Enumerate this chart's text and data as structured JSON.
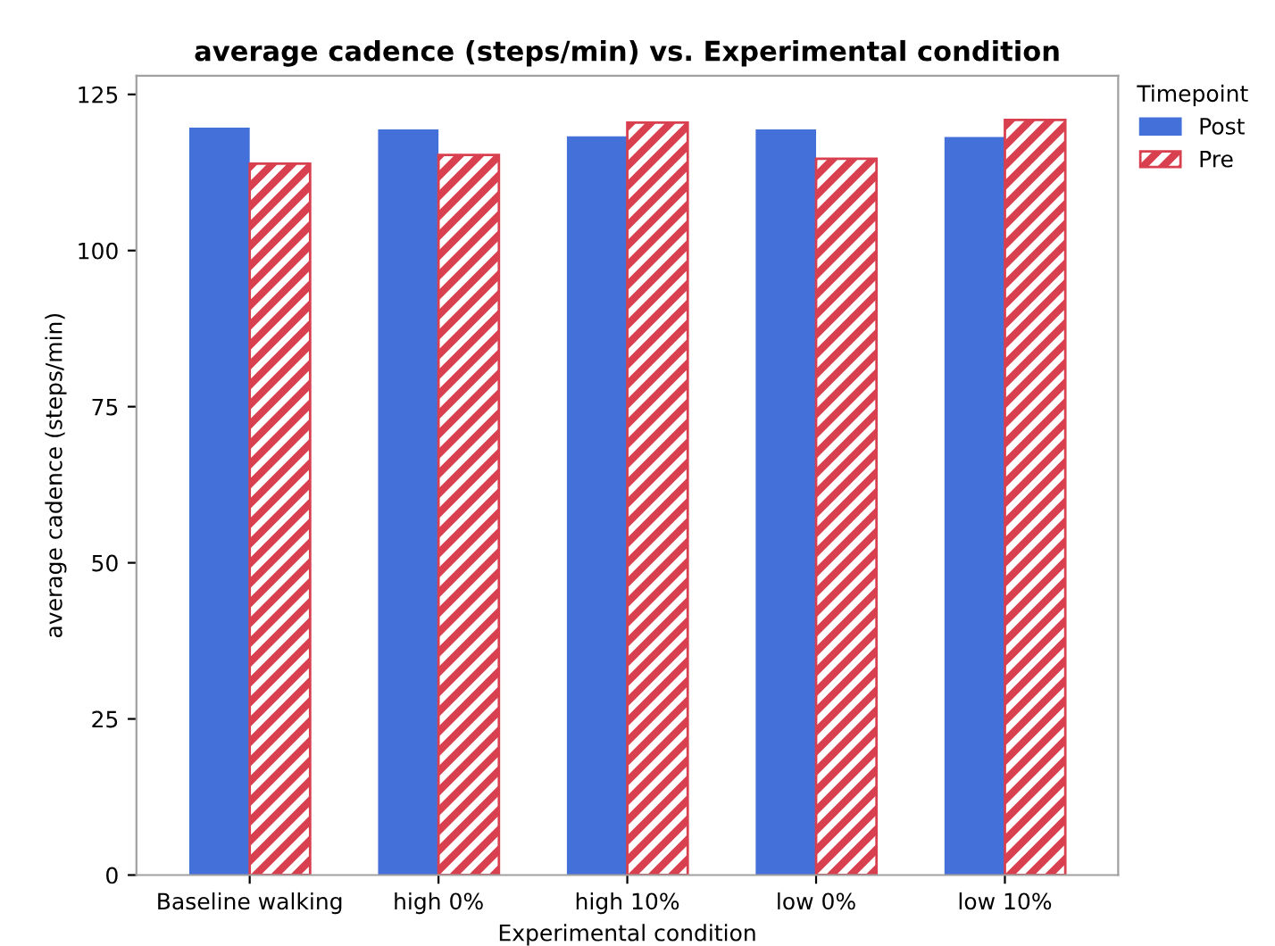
{
  "chart_data": {
    "type": "bar",
    "title": "average cadence (steps/min) vs. Experimental condition",
    "xlabel": "Experimental condition",
    "ylabel": "average cadence (steps/min)",
    "legend_title": "Timepoint",
    "categories": [
      "Baseline walking",
      "high 0%",
      "high 10%",
      "low 0%",
      "low 10%"
    ],
    "series": [
      {
        "name": "Post",
        "color": "#4470d9",
        "values": [
          119.7,
          119.4,
          118.3,
          119.4,
          118.2
        ]
      },
      {
        "name": "Pre",
        "color": "#d9404f",
        "values": [
          113.9,
          115.3,
          120.5,
          114.7,
          120.9
        ]
      }
    ],
    "ylim": [
      0,
      128
    ],
    "yticks": [
      0,
      25,
      50,
      75,
      100,
      125
    ],
    "grid": false,
    "legend": "top right"
  }
}
